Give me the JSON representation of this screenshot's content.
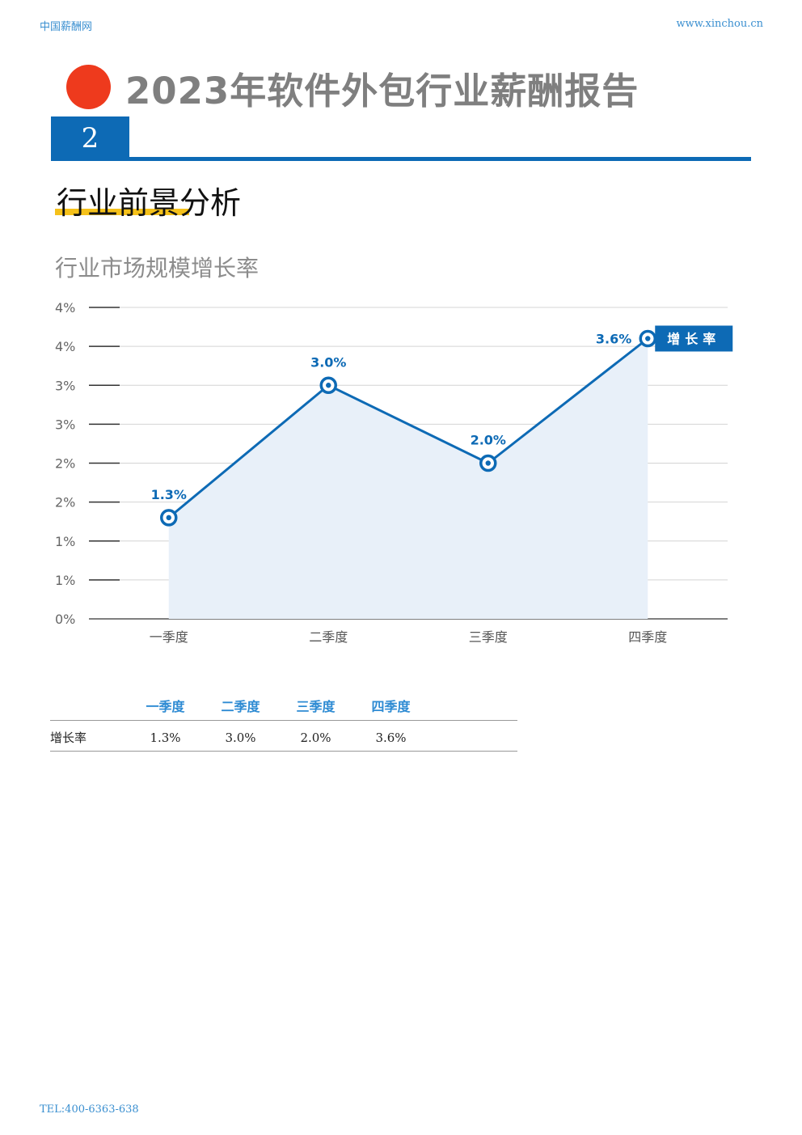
{
  "header": {
    "site_name": "中国薪酬网",
    "site_url": "www.xinchou.cn"
  },
  "report_title": "2023年软件外包行业薪酬报告",
  "section": {
    "number": "2",
    "title": "行业前景分析"
  },
  "chart_title": "行业市场规模增长率",
  "chart_data": {
    "type": "area",
    "categories": [
      "一季度",
      "二季度",
      "三季度",
      "四季度"
    ],
    "series": [
      {
        "name": "增长率",
        "values": [
          1.3,
          3.0,
          2.0,
          3.6
        ],
        "labels": [
          "1.3%",
          "3.0%",
          "2.0%",
          "3.6%"
        ]
      }
    ],
    "ylim": [
      0,
      4
    ],
    "ytick_labels": [
      "0%",
      "1%",
      "1%",
      "2%",
      "2%",
      "3%",
      "3%",
      "4%",
      "4%"
    ],
    "grid": true,
    "legend": "right",
    "colors": {
      "line": "#0d6ab5",
      "fill": "#e8f0f9",
      "legend_bg": "#0d6ab5"
    }
  },
  "table": {
    "headers": [
      "一季度",
      "二季度",
      "三季度",
      "四季度"
    ],
    "rows": [
      {
        "label": "增长率",
        "values": [
          "1.3%",
          "3.0%",
          "2.0%",
          "3.6%"
        ]
      }
    ]
  },
  "footer": {
    "tel": "TEL:400-6363-638"
  }
}
